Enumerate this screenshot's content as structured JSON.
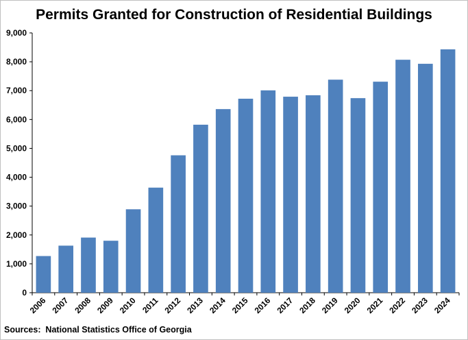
{
  "chart_data": {
    "type": "bar",
    "title": "Permits Granted for Construction of Residential Buildings",
    "source": "Sources:  National Statistics Office of Georgia",
    "xlabel": "",
    "ylabel": "",
    "ylim": [
      0,
      9000
    ],
    "yticks": [
      0,
      1000,
      2000,
      3000,
      4000,
      5000,
      6000,
      7000,
      8000,
      9000
    ],
    "ytick_labels": [
      "0",
      "1,000",
      "2,000",
      "3,000",
      "4,000",
      "5,000",
      "6,000",
      "7,000",
      "8,000",
      "9,000"
    ],
    "grid": false,
    "legend": "none",
    "bar_color": "#4f81bd",
    "categories": [
      "2006",
      "2007",
      "2008",
      "2009",
      "2010",
      "2011",
      "2012",
      "2013",
      "2014",
      "2015",
      "2016",
      "2017",
      "2018",
      "2019",
      "2020",
      "2021",
      "2022",
      "2023",
      "2024"
    ],
    "values": [
      1270,
      1630,
      1910,
      1800,
      2890,
      3640,
      4760,
      5820,
      6360,
      6720,
      7010,
      6790,
      6840,
      7380,
      6740,
      7310,
      8070,
      7930,
      8430
    ]
  }
}
